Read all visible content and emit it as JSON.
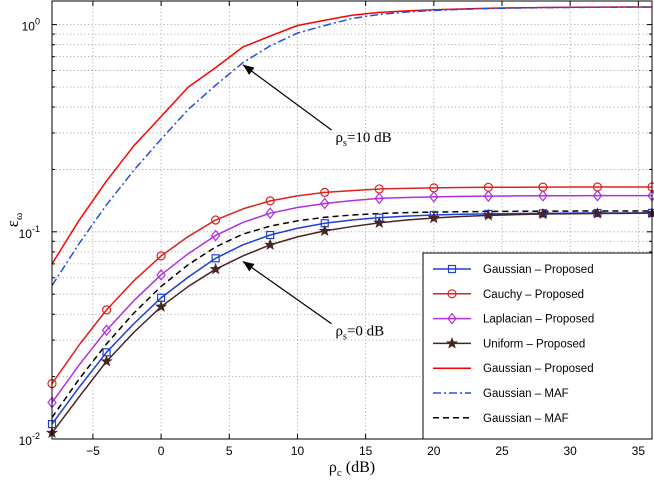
{
  "chart_data": {
    "type": "line",
    "title": "",
    "xlabel": {
      "main": "ρ",
      "sub": "c",
      "unit": " (dB)"
    },
    "ylabel": {
      "main": "ε",
      "sub": "ω"
    },
    "scale": {
      "y": "log"
    },
    "xlim": [
      -8,
      36
    ],
    "ylim": [
      0.01,
      1.3
    ],
    "grid": true,
    "legend_position": "bottom-right",
    "x_ticks": [
      -5,
      0,
      5,
      10,
      15,
      20,
      25,
      30,
      35
    ],
    "x_tick_labels": [
      "−5",
      "0",
      "5",
      "10",
      "15",
      "20",
      "25",
      "30",
      "35"
    ],
    "y_ticks": [
      {
        "value": 1,
        "base": "10",
        "exp": "0"
      },
      {
        "value": 0.1,
        "base": "10",
        "exp": "-1"
      },
      {
        "value": 0.01,
        "base": "10",
        "exp": "-2"
      }
    ],
    "x": [
      -8,
      -6,
      -4,
      -2,
      0,
      2,
      4,
      6,
      8,
      10,
      12,
      14,
      16,
      18,
      20,
      22,
      24,
      26,
      28,
      30,
      32,
      34,
      36
    ],
    "series": [
      {
        "name": "Gaussian – Proposed",
        "color": "#1f3fd6",
        "style": "solid",
        "marker": "square",
        "values": [
          0.0118,
          0.0178,
          0.0262,
          0.036,
          0.048,
          0.0605,
          0.0745,
          0.0865,
          0.0965,
          0.104,
          0.11,
          0.114,
          0.117,
          0.119,
          0.1205,
          0.1215,
          0.122,
          0.1225,
          0.1228,
          0.123,
          0.1232,
          0.1233,
          0.1234
        ]
      },
      {
        "name": "Cauchy – Proposed",
        "color": "#e0201c",
        "style": "solid",
        "marker": "circle",
        "values": [
          0.0185,
          0.0285,
          0.042,
          0.058,
          0.0765,
          0.095,
          0.114,
          0.129,
          0.141,
          0.149,
          0.155,
          0.158,
          0.161,
          0.162,
          0.163,
          0.1635,
          0.164,
          0.164,
          0.1643,
          0.1645,
          0.1645,
          0.1646,
          0.1646
        ]
      },
      {
        "name": "Laplacian – Proposed",
        "color": "#b030e0",
        "style": "solid",
        "marker": "diamond",
        "values": [
          0.015,
          0.0228,
          0.0335,
          0.0465,
          0.062,
          0.0785,
          0.096,
          0.111,
          0.123,
          0.131,
          0.137,
          0.1415,
          0.145,
          0.1465,
          0.1475,
          0.1482,
          0.1487,
          0.149,
          0.1492,
          0.1493,
          0.1494,
          0.1495,
          0.1495
        ]
      },
      {
        "name": "Uniform – Proposed",
        "color": "#4a2420",
        "style": "solid",
        "marker": "star",
        "values": [
          0.0107,
          0.016,
          0.0237,
          0.0327,
          0.0435,
          0.0545,
          0.066,
          0.0765,
          0.0865,
          0.0945,
          0.101,
          0.106,
          0.1105,
          0.114,
          0.1165,
          0.1185,
          0.12,
          0.121,
          0.1218,
          0.1223,
          0.1226,
          0.1228,
          0.123
        ]
      },
      {
        "name": "Gaussian – Proposed",
        "color": "#ff0000",
        "style": "solid",
        "marker": "none",
        "values": [
          0.07,
          0.114,
          0.176,
          0.26,
          0.36,
          0.5,
          0.62,
          0.78,
          0.88,
          0.99,
          1.05,
          1.11,
          1.145,
          1.165,
          1.18,
          1.19,
          1.2,
          1.205,
          1.21,
          1.212,
          1.214,
          1.216,
          1.217
        ]
      },
      {
        "name": "Gaussian – MAF",
        "color": "#2050e0",
        "style": "dashdot",
        "marker": "none",
        "values": [
          0.055,
          0.088,
          0.135,
          0.198,
          0.28,
          0.39,
          0.51,
          0.655,
          0.79,
          0.91,
          0.99,
          1.07,
          1.12,
          1.15,
          1.17,
          1.185,
          1.195,
          1.202,
          1.207,
          1.21,
          1.212,
          1.214,
          1.215
        ]
      },
      {
        "name": "Gaussian – MAF",
        "color": "#000000",
        "style": "dashed",
        "marker": "none",
        "values": [
          0.0127,
          0.0195,
          0.0288,
          0.0405,
          0.0545,
          0.0695,
          0.0845,
          0.0975,
          0.1065,
          0.113,
          0.1175,
          0.1205,
          0.1225,
          0.1238,
          0.1245,
          0.125,
          0.1253,
          0.1256,
          0.1258,
          0.1259,
          0.126,
          0.126,
          0.126
        ]
      }
    ],
    "marker_x": [
      -8,
      -4,
      0,
      4,
      8,
      12,
      16,
      20,
      24,
      28,
      32,
      36
    ],
    "annotations": [
      {
        "label": "ρ",
        "sub": "s",
        "rest": "=10 dB",
        "from": [
          12.5,
          0.31
        ],
        "to": [
          6,
          0.64
        ]
      },
      {
        "label": "ρ",
        "sub": "s",
        "rest": "=0 dB",
        "from": [
          12.5,
          0.036
        ],
        "to": [
          6,
          0.072
        ]
      }
    ]
  }
}
